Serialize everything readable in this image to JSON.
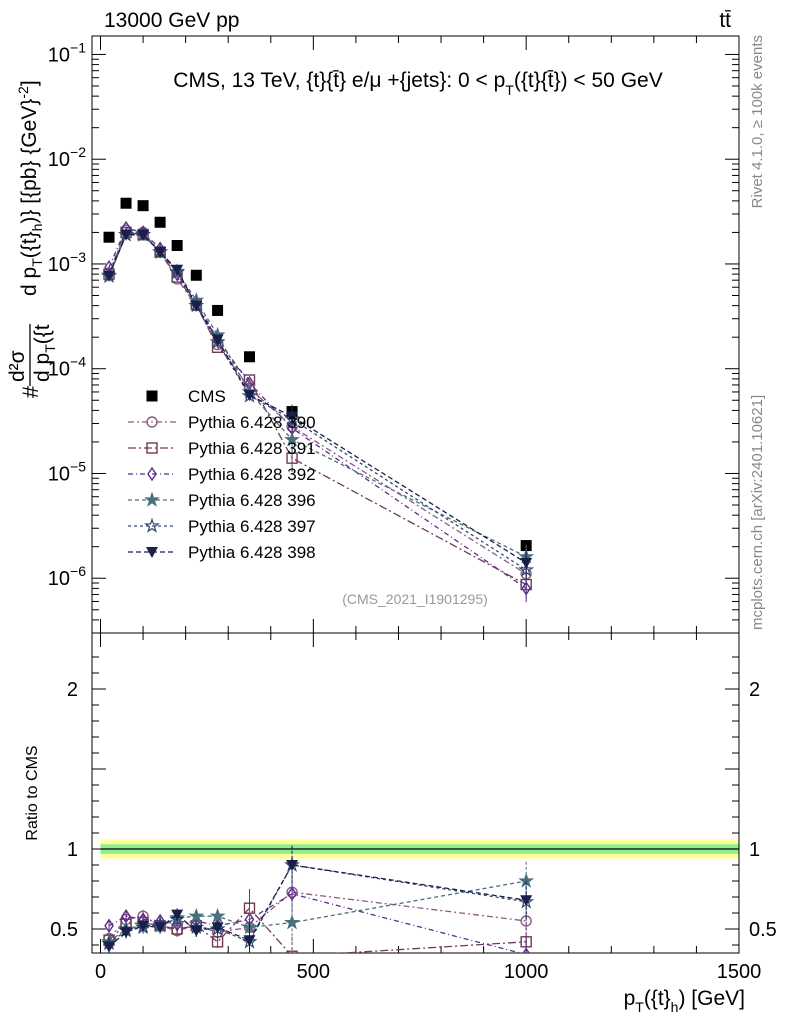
{
  "header": {
    "left": "13000 GeV pp",
    "right": "tt̄"
  },
  "side_labels": {
    "rivet": "Rivet 4.1.0, ≥ 100k events",
    "mcplots": "mcplots.cern.ch [arXiv:2401.10621]"
  },
  "analysis_id": "(CMS_2021_I1901295)",
  "colors": {
    "cms": "#000000",
    "p390": "#8e5a86",
    "p391": "#703a55",
    "p392": "#5a2e8a",
    "p396": "#4a7080",
    "p397": "#2e4a70",
    "p398": "#1a1f4a",
    "band_outer": "#ffff99",
    "band_inner": "#90ee90"
  },
  "chart_data": [
    {
      "type": "scatter",
      "name": "main",
      "title": "CMS, 13 TeV, {t}{t̄} e/μ +{jets}: 0 < p_T({t}{t̄}) < 50 GeV",
      "title_parts": {
        "pre": "CMS, 13 TeV, {t}{t̄} e/μ +{jets}: 0 <  p",
        "sub": "T",
        "post": "({t}{t̄}) < 50 GeV"
      },
      "ylabel": "#d²σ/d p_T({t}_h) d p_T({t̄}) [{pb} {GeV}⁻²]",
      "ylabel_parts": {
        "num": "d²σ",
        "den": "d p",
        "den_sub": "T",
        "den_post": "({t",
        "mid": "d p",
        "mid_sub": "T",
        "mid_sub2": "h",
        "mid_post": "({t}",
        "tail": ")} [{pb} {GeV}",
        "tail_sup": "-2",
        "end": "]"
      },
      "ylabel_lead": "#",
      "xlim": [
        -20,
        1500
      ],
      "ylim": [
        3e-07,
        0.15
      ],
      "y_log": true,
      "ytick_labels": [
        {
          "v": 1e-06,
          "base": "10",
          "exp": "−6"
        },
        {
          "v": 1e-05,
          "base": "10",
          "exp": "−5"
        },
        {
          "v": 0.0001,
          "base": "10",
          "exp": "−4"
        },
        {
          "v": 0.001,
          "base": "10",
          "exp": "−3"
        },
        {
          "v": 0.01,
          "base": "10",
          "exp": "−2"
        },
        {
          "v": 0.1,
          "base": "10",
          "exp": "−1"
        }
      ],
      "x": [
        20,
        60,
        100,
        140,
        180,
        225,
        275,
        350,
        450,
        1000
      ],
      "series": [
        {
          "name": "CMS",
          "marker": "square",
          "dash": "",
          "values": [
            0.0018,
            0.0038,
            0.0036,
            0.0025,
            0.0015,
            0.00078,
            0.00036,
            0.00013,
            3.9e-05,
            2.05e-06
          ]
        },
        {
          "name": "Pythia 6.428 390",
          "marker": "circle",
          "dash": "6,3,2,3",
          "values": [
            0.00082,
            0.0021,
            0.002,
            0.0013,
            0.00072,
            0.0004,
            0.00017,
            6.5e-05,
            2.8e-05,
            1.1e-06
          ]
        },
        {
          "name": "Pythia 6.428 391",
          "marker": "square-open",
          "dash": "8,3,2,3",
          "values": [
            0.0008,
            0.002,
            0.0019,
            0.0013,
            0.00075,
            0.00041,
            0.00016,
            7.8e-05,
            1.4e-05,
            8.7e-07
          ]
        },
        {
          "name": "Pythia 6.428 392",
          "marker": "diamond",
          "dash": "5,3,1,3",
          "values": [
            0.00093,
            0.0022,
            0.002,
            0.0014,
            0.0008,
            0.00043,
            0.00019,
            7.3e-05,
            2.7e-05,
            8e-07
          ]
        },
        {
          "name": "Pythia 6.428 396",
          "marker": "star",
          "dash": "4,3",
          "values": [
            0.00076,
            0.0019,
            0.0019,
            0.0013,
            0.00085,
            0.00045,
            0.00021,
            6e-05,
            2.1e-05,
            1.6e-06
          ]
        },
        {
          "name": "Pythia 6.428 397",
          "marker": "star-open",
          "dash": "3,3",
          "values": [
            0.00078,
            0.0019,
            0.0019,
            0.0013,
            0.00083,
            0.0004,
            0.00018,
            5.5e-05,
            3.3e-05,
            1.2e-06
          ]
        },
        {
          "name": "Pythia 6.428 398",
          "marker": "triangle-down",
          "dash": "5,3",
          "values": [
            0.00077,
            0.0019,
            0.0019,
            0.0013,
            0.00088,
            0.0004,
            0.00019,
            5.6e-05,
            3.5e-05,
            1.4e-06
          ]
        }
      ]
    },
    {
      "type": "scatter",
      "name": "ratio",
      "ylabel": "Ratio to CMS",
      "xlabel_parts": {
        "pre": "p",
        "sub": "T",
        "mid": "({t}",
        "sub2": "h",
        "post": ") [GeV]"
      },
      "xlim": [
        -20,
        1500
      ],
      "ylim": [
        0.35,
        2.35
      ],
      "xtick_labels": [
        "0",
        "500",
        "1000",
        "1500"
      ],
      "xticks": [
        0,
        500,
        1000,
        1500
      ],
      "ytick_labels": [
        "0.5",
        "1",
        "2"
      ],
      "yticks": [
        0.5,
        1,
        2
      ],
      "band_outer": [
        0.94,
        1.06
      ],
      "band_inner": [
        0.97,
        1.03
      ],
      "x": [
        20,
        60,
        100,
        140,
        180,
        225,
        275,
        350,
        450,
        1000
      ],
      "series": [
        {
          "name": "Pythia 6.428 390",
          "values": [
            0.44,
            0.56,
            0.58,
            0.52,
            0.49,
            0.52,
            0.48,
            0.51,
            0.73,
            0.55
          ]
        },
        {
          "name": "Pythia 6.428 391",
          "values": [
            0.43,
            0.53,
            0.54,
            0.52,
            0.5,
            0.52,
            0.42,
            0.63,
            0.33,
            0.42
          ]
        },
        {
          "name": "Pythia 6.428 392",
          "values": [
            0.52,
            0.58,
            0.56,
            0.55,
            0.53,
            0.55,
            0.52,
            0.56,
            0.72,
            0.34
          ]
        },
        {
          "name": "Pythia 6.428 396",
          "values": [
            0.42,
            0.5,
            0.52,
            0.52,
            0.57,
            0.58,
            0.58,
            0.51,
            0.54,
            0.8
          ]
        },
        {
          "name": "Pythia 6.428 397",
          "values": [
            0.41,
            0.49,
            0.51,
            0.53,
            0.56,
            0.51,
            0.5,
            0.42,
            0.9,
            0.67
          ]
        },
        {
          "name": "Pythia 6.428 398",
          "values": [
            0.39,
            0.48,
            0.52,
            0.51,
            0.59,
            0.49,
            0.51,
            0.43,
            0.9,
            0.68
          ]
        }
      ]
    }
  ]
}
